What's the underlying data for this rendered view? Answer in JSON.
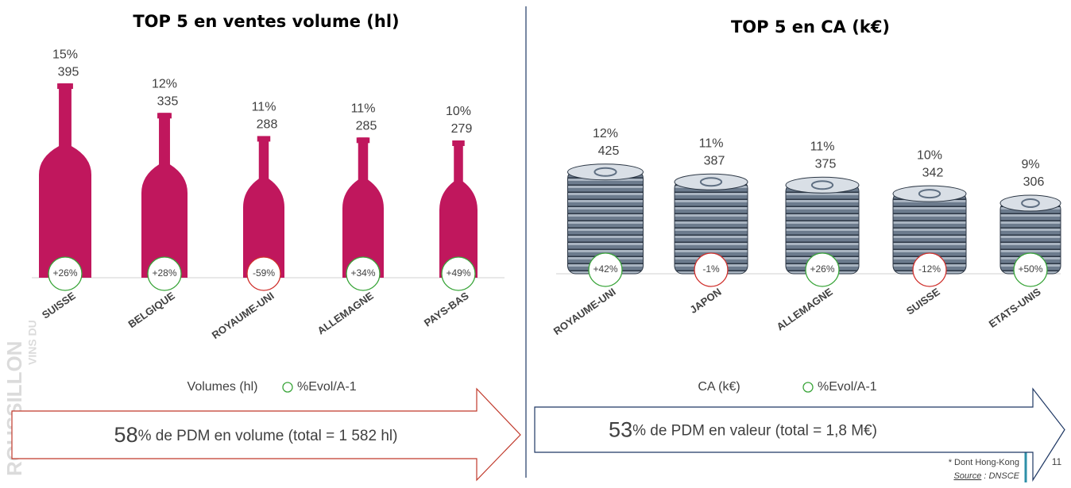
{
  "watermark": [
    "VINS DU",
    "ROUSSILLON"
  ],
  "chart_data": [
    {
      "type": "bar",
      "icon": "bottle",
      "title": "TOP 5 en ventes volume (hl)",
      "categories": [
        "SUISSE",
        "BELGIQUE",
        "ROYAUME-UNI",
        "ALLEMAGNE",
        "PAYS-BAS"
      ],
      "series": [
        {
          "name": "Volumes (hl)",
          "color": "#c0175d",
          "values": [
            395,
            335,
            288,
            285,
            279
          ]
        },
        {
          "name": "%Evol/A-1",
          "color": "#3aa53a",
          "values": [
            26,
            28,
            -59,
            34,
            49
          ],
          "value_labels": [
            "+26%",
            "+28%",
            "-59%",
            "+34%",
            "+49%"
          ],
          "point_colors": [
            "#3aa53a",
            "#3aa53a",
            "#d0312d",
            "#3aa53a",
            "#3aa53a"
          ]
        }
      ],
      "shares": {
        "values": [
          15,
          12,
          11,
          11,
          10
        ],
        "value_labels": [
          "15%",
          "12%",
          "11%",
          "11%",
          "10%"
        ]
      },
      "summary": {
        "highlight": "58",
        "text": "% de PDM en volume (total = 1 582 hl)",
        "color": "#c0392b"
      }
    },
    {
      "type": "bar",
      "icon": "coins",
      "title": "TOP 5 en CA (k€)",
      "categories": [
        "ROYAUME-UNI",
        "JAPON",
        "ALLEMAGNE",
        "SUISSE",
        "ETATS-UNIS"
      ],
      "series": [
        {
          "name": "CA (k€)",
          "color": "#5f6f82",
          "values": [
            425,
            387,
            375,
            342,
            306
          ]
        },
        {
          "name": "%Evol/A-1",
          "color": "#3aa53a",
          "values": [
            42,
            -1,
            26,
            -12,
            50
          ],
          "value_labels": [
            "+42%",
            "-1%",
            "+26%",
            "-12%",
            "+50%"
          ],
          "point_colors": [
            "#3aa53a",
            "#d0312d",
            "#3aa53a",
            "#d0312d",
            "#3aa53a"
          ]
        }
      ],
      "shares": {
        "values": [
          12,
          11,
          11,
          10,
          9
        ],
        "value_labels": [
          "12%",
          "11%",
          "11%",
          "10%",
          "9%"
        ]
      },
      "summary": {
        "highlight": "53",
        "text": "% de PDM en valeur (total = 1,8 M€)",
        "color": "#1f3864"
      }
    }
  ],
  "footer": {
    "note": "* Dont Hong-Kong",
    "source_label": "Source",
    "source_text": " : DNSCE",
    "page": "11"
  }
}
